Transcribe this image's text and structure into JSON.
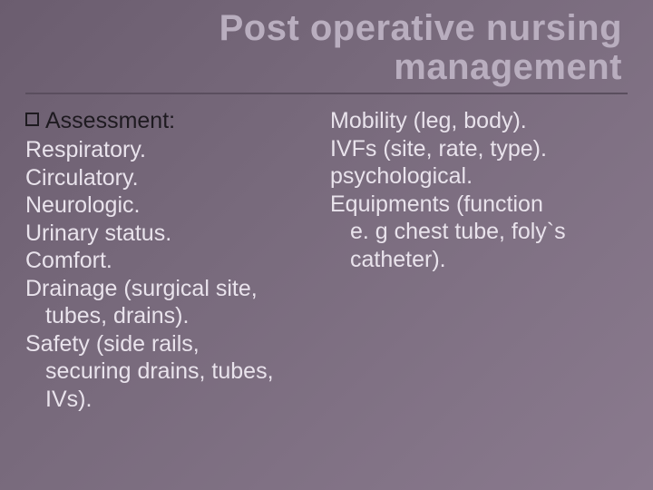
{
  "slide": {
    "title": "Post operative nursing management",
    "title_color": "#b9aebf",
    "title_fontsize": 40,
    "title_weight": 700,
    "rule_color": "#5a4e5e",
    "background_gradient": [
      "#6b5d6f",
      "#786a7c",
      "#8a7a8e"
    ],
    "body_color": "#e9e3ec",
    "lead_color": "#1e1a20",
    "body_fontsize": 25
  },
  "left": {
    "lead": "Assessment:",
    "lines": [
      "Respiratory.",
      "Circulatory.",
      "Neurologic.",
      "Urinary status.",
      "Comfort.",
      "Drainage (surgical site,",
      "  tubes, drains).",
      "Safety (side rails,",
      "  securing drains, tubes,",
      "  IVs)."
    ]
  },
  "right": {
    "lines": [
      "Mobility (leg, body).",
      "IVFs (site, rate, type).",
      "psychological.",
      "Equipments (function",
      "  e. g chest tube, foly`s",
      "  catheter)."
    ]
  }
}
